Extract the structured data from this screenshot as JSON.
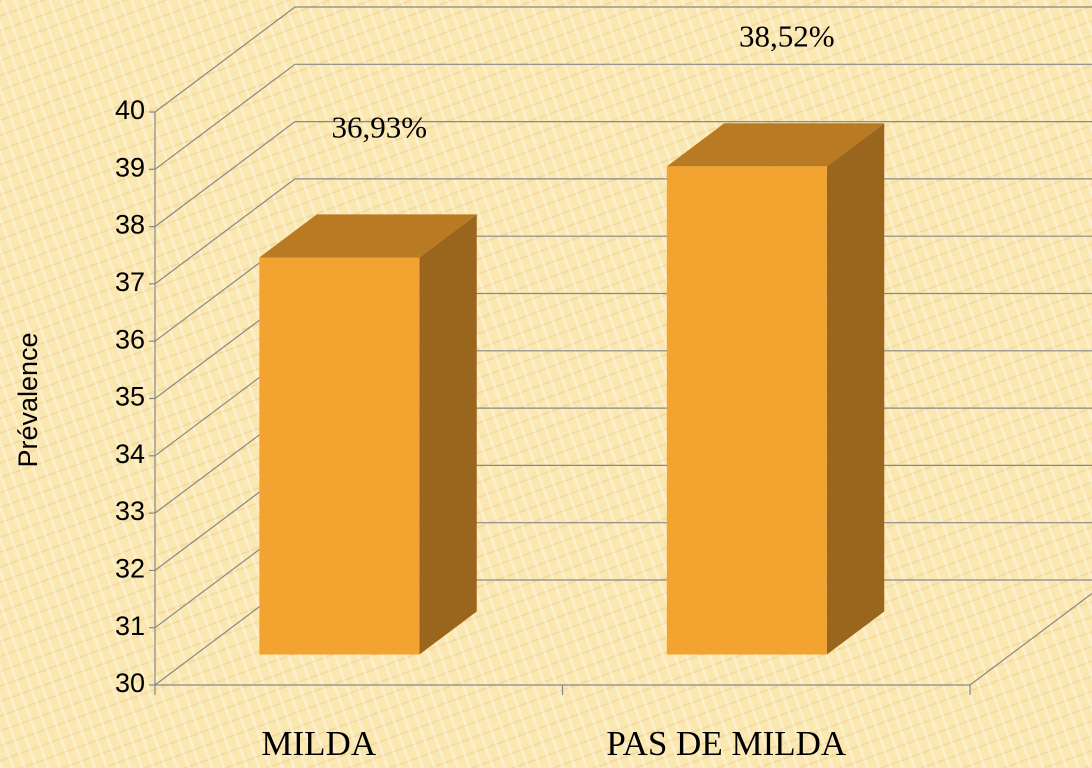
{
  "chart_data": {
    "type": "bar3d",
    "categories": [
      "MILDA",
      "PAS DE MILDA"
    ],
    "values": [
      36.93,
      38.52
    ],
    "value_labels": [
      "36,93%",
      "38,52%"
    ],
    "y_label": "Prévalence",
    "color": "#f2a330",
    "ylim": [
      30,
      40
    ],
    "yticks": [
      30,
      31,
      32,
      33,
      34,
      35,
      36,
      37,
      38,
      39,
      40
    ],
    "grid": true
  }
}
